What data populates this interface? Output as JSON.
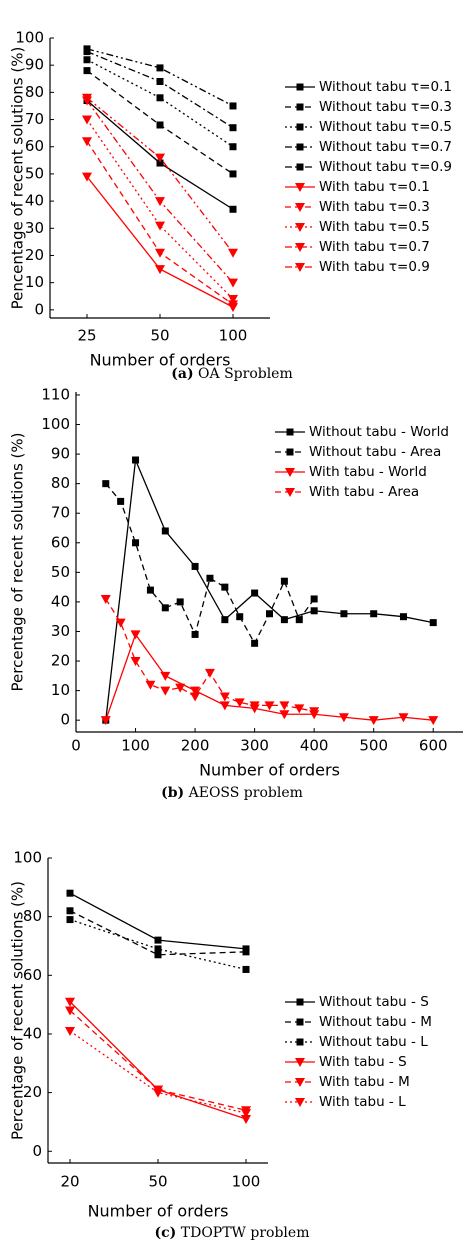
{
  "chart_data": [
    {
      "type": "line",
      "caption_label": "(a)",
      "caption": "OA Sproblem",
      "xlabel": "Number of orders",
      "ylabel": "Pencentage of recent solutions (%)",
      "categories": [
        "25",
        "50",
        "100"
      ],
      "ylim": [
        -3,
        100
      ],
      "yticks": [
        0,
        10,
        20,
        30,
        40,
        50,
        60,
        70,
        80,
        90,
        100
      ],
      "series": [
        {
          "name": "Without tabu τ=0.1",
          "color": "#000000",
          "marker": "square",
          "dash": "solid",
          "values": [
            77,
            54,
            37
          ]
        },
        {
          "name": "Without tabu τ=0.3",
          "color": "#000000",
          "marker": "square",
          "dash": "dashed",
          "values": [
            88,
            68,
            50
          ]
        },
        {
          "name": "Without tabu τ=0.5",
          "color": "#000000",
          "marker": "square",
          "dash": "dotted",
          "values": [
            92,
            78,
            60
          ]
        },
        {
          "name": "Without tabu τ=0.7",
          "color": "#000000",
          "marker": "square",
          "dash": "dashdot",
          "values": [
            95,
            84,
            67
          ]
        },
        {
          "name": "Without tabu τ=0.9",
          "color": "#000000",
          "marker": "square",
          "dash": "dashdotdot",
          "values": [
            96,
            89,
            75
          ]
        },
        {
          "name": "With tabu τ=0.1",
          "color": "#ff0000",
          "marker": "triangle-down",
          "dash": "solid",
          "values": [
            49,
            15,
            1
          ]
        },
        {
          "name": "With tabu τ=0.3",
          "color": "#ff0000",
          "marker": "triangle-down",
          "dash": "dashed",
          "values": [
            62,
            21,
            2
          ]
        },
        {
          "name": "With tabu τ=0.5",
          "color": "#ff0000",
          "marker": "triangle-down",
          "dash": "dotted",
          "values": [
            70,
            31,
            4
          ]
        },
        {
          "name": "With tabu τ=0.7",
          "color": "#ff0000",
          "marker": "triangle-down",
          "dash": "dashdot",
          "values": [
            77,
            40,
            10
          ]
        },
        {
          "name": "With tabu τ=0.9",
          "color": "#ff0000",
          "marker": "triangle-down",
          "dash": "dashdotdot",
          "values": [
            78,
            56,
            21
          ]
        }
      ]
    },
    {
      "type": "line",
      "caption_label": "(b)",
      "caption": "AEOSS problem",
      "xlabel": "Number of orders",
      "ylabel": "Percentage of recent solutions (%)",
      "xlim": [
        0,
        650
      ],
      "xticks": [
        0,
        100,
        200,
        300,
        400,
        500,
        600
      ],
      "ylim": [
        -4,
        111
      ],
      "yticks": [
        0,
        10,
        20,
        30,
        40,
        50,
        60,
        70,
        80,
        90,
        100,
        110
      ],
      "series": [
        {
          "name": "Without tabu - World",
          "color": "#000000",
          "marker": "square",
          "dash": "solid",
          "x": [
            50,
            100,
            150,
            200,
            250,
            300,
            350,
            400,
            450,
            500,
            550,
            600
          ],
          "values": [
            0,
            88,
            64,
            52,
            34,
            43,
            34,
            37,
            36,
            36,
            35,
            33
          ]
        },
        {
          "name": "Without tabu - Area",
          "color": "#000000",
          "marker": "square",
          "dash": "dashed",
          "x": [
            50,
            75,
            100,
            125,
            150,
            175,
            200,
            225,
            250,
            275,
            300,
            325,
            350,
            375,
            400
          ],
          "values": [
            80,
            74,
            60,
            44,
            38,
            40,
            29,
            48,
            45,
            35,
            26,
            36,
            47,
            34,
            41
          ]
        },
        {
          "name": "With tabu - World",
          "color": "#ff0000",
          "marker": "triangle-down",
          "dash": "solid",
          "x": [
            50,
            100,
            150,
            200,
            250,
            300,
            350,
            400,
            450,
            500,
            550,
            600
          ],
          "values": [
            0,
            29,
            15,
            10,
            5,
            4,
            2,
            2,
            1,
            0,
            1,
            0
          ]
        },
        {
          "name": "With tabu - Area",
          "color": "#ff0000",
          "marker": "triangle-down",
          "dash": "dashed",
          "x": [
            50,
            75,
            100,
            125,
            150,
            175,
            200,
            225,
            250,
            275,
            300,
            325,
            350,
            375,
            400
          ],
          "values": [
            41,
            33,
            20,
            12,
            10,
            11,
            8,
            16,
            8,
            6,
            5,
            5,
            5,
            4,
            3
          ]
        }
      ]
    },
    {
      "type": "line",
      "caption_label": "(c)",
      "caption": "TDOPTW problem",
      "xlabel": "Number of orders",
      "ylabel": "Percentage of recent solutions (%)",
      "categories": [
        "20",
        "50",
        "100"
      ],
      "ylim": [
        -4,
        100
      ],
      "yticks": [
        0,
        20,
        40,
        60,
        80,
        100
      ],
      "series": [
        {
          "name": "Without tabu - S",
          "color": "#000000",
          "marker": "square",
          "dash": "solid",
          "values": [
            88,
            72,
            69
          ]
        },
        {
          "name": "Without tabu - M",
          "color": "#000000",
          "marker": "square",
          "dash": "dashed",
          "values": [
            82,
            67,
            68
          ]
        },
        {
          "name": "Without tabu - L",
          "color": "#000000",
          "marker": "square",
          "dash": "dotted",
          "values": [
            79,
            69,
            62
          ]
        },
        {
          "name": "With tabu - S",
          "color": "#ff0000",
          "marker": "triangle-down",
          "dash": "solid",
          "values": [
            51,
            21,
            11
          ]
        },
        {
          "name": "With tabu - M",
          "color": "#ff0000",
          "marker": "triangle-down",
          "dash": "dashed",
          "values": [
            48,
            21,
            14
          ]
        },
        {
          "name": "With tabu - L",
          "color": "#ff0000",
          "marker": "triangle-down",
          "dash": "dotted",
          "values": [
            41,
            20,
            13
          ]
        }
      ]
    }
  ]
}
